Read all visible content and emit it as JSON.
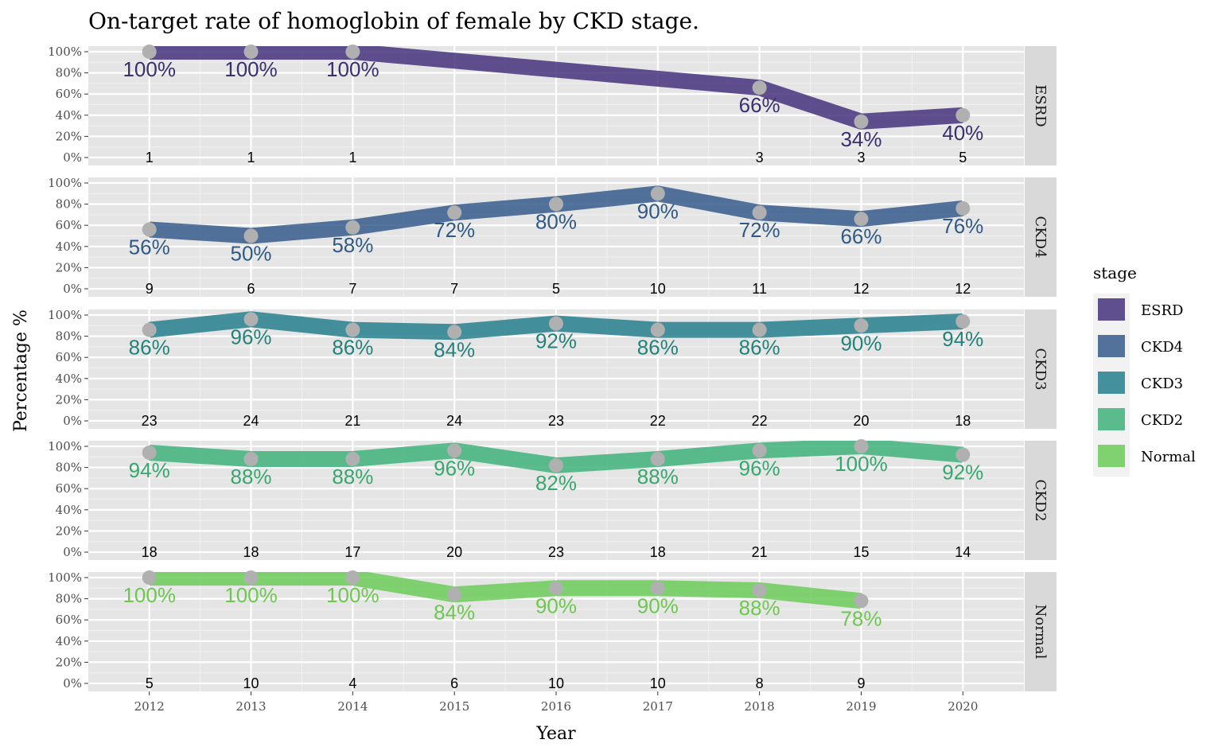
{
  "chart_data": {
    "type": "line",
    "title": "On-target rate of homoglobin of female by CKD stage.",
    "xlabel": "Year",
    "ylabel": "Percentage %",
    "x": [
      2012,
      2013,
      2014,
      2015,
      2016,
      2017,
      2018,
      2019,
      2020
    ],
    "x_tick_labels": [
      "2012",
      "2013",
      "2014",
      "2015",
      "2016",
      "2017",
      "2018",
      "2019",
      "2020"
    ],
    "ylim": [
      0,
      100
    ],
    "y_tick_labels": [
      "0%",
      "20%",
      "40%",
      "60%",
      "80%",
      "100%"
    ],
    "grid": true,
    "legend": {
      "title": "stage",
      "position": "right"
    },
    "series": [
      {
        "name": "ESRD",
        "color": "#46337e",
        "label_color": "#3b2f6e",
        "values": [
          100,
          100,
          100,
          null,
          null,
          null,
          66,
          34,
          40
        ],
        "labels": [
          "100%",
          "100%",
          "100%",
          null,
          null,
          null,
          "66%",
          "34%",
          "40%"
        ],
        "counts": [
          "1",
          "1",
          "1",
          null,
          null,
          null,
          "3",
          "3",
          "5"
        ]
      },
      {
        "name": "CKD4",
        "color": "#365c8d",
        "label_color": "#2f5a85",
        "values": [
          56,
          50,
          58,
          72,
          80,
          90,
          72,
          66,
          76
        ],
        "labels": [
          "56%",
          "50%",
          "58%",
          "72%",
          "80%",
          "90%",
          "72%",
          "66%",
          "76%"
        ],
        "counts": [
          "9",
          "6",
          "7",
          "7",
          "5",
          "10",
          "11",
          "12",
          "12"
        ]
      },
      {
        "name": "CKD3",
        "color": "#277f8e",
        "label_color": "#23827a",
        "values": [
          86,
          96,
          86,
          84,
          92,
          86,
          86,
          90,
          94
        ],
        "labels": [
          "86%",
          "96%",
          "86%",
          "84%",
          "92%",
          "86%",
          "86%",
          "90%",
          "94%"
        ],
        "counts": [
          "23",
          "24",
          "21",
          "24",
          "23",
          "22",
          "22",
          "20",
          "18"
        ]
      },
      {
        "name": "CKD2",
        "color": "#1fa187",
        "label_color": "#35a86e",
        "line_color": "#40b37a",
        "values": [
          94,
          88,
          88,
          96,
          82,
          88,
          96,
          100,
          92
        ],
        "labels": [
          "94%",
          "88%",
          "88%",
          "96%",
          "82%",
          "88%",
          "96%",
          "100%",
          "92%"
        ],
        "counts": [
          "18",
          "18",
          "17",
          "20",
          "23",
          "18",
          "21",
          "15",
          "14"
        ]
      },
      {
        "name": "Normal",
        "color": "#6ccd5a",
        "label_color": "#6cc84e",
        "values": [
          100,
          100,
          100,
          84,
          90,
          90,
          88,
          78,
          null
        ],
        "labels": [
          "100%",
          "100%",
          "100%",
          "84%",
          "90%",
          "90%",
          "88%",
          "78%",
          null
        ],
        "counts": [
          "5",
          "10",
          "4",
          "6",
          "10",
          "10",
          "8",
          "9",
          null
        ]
      }
    ]
  }
}
